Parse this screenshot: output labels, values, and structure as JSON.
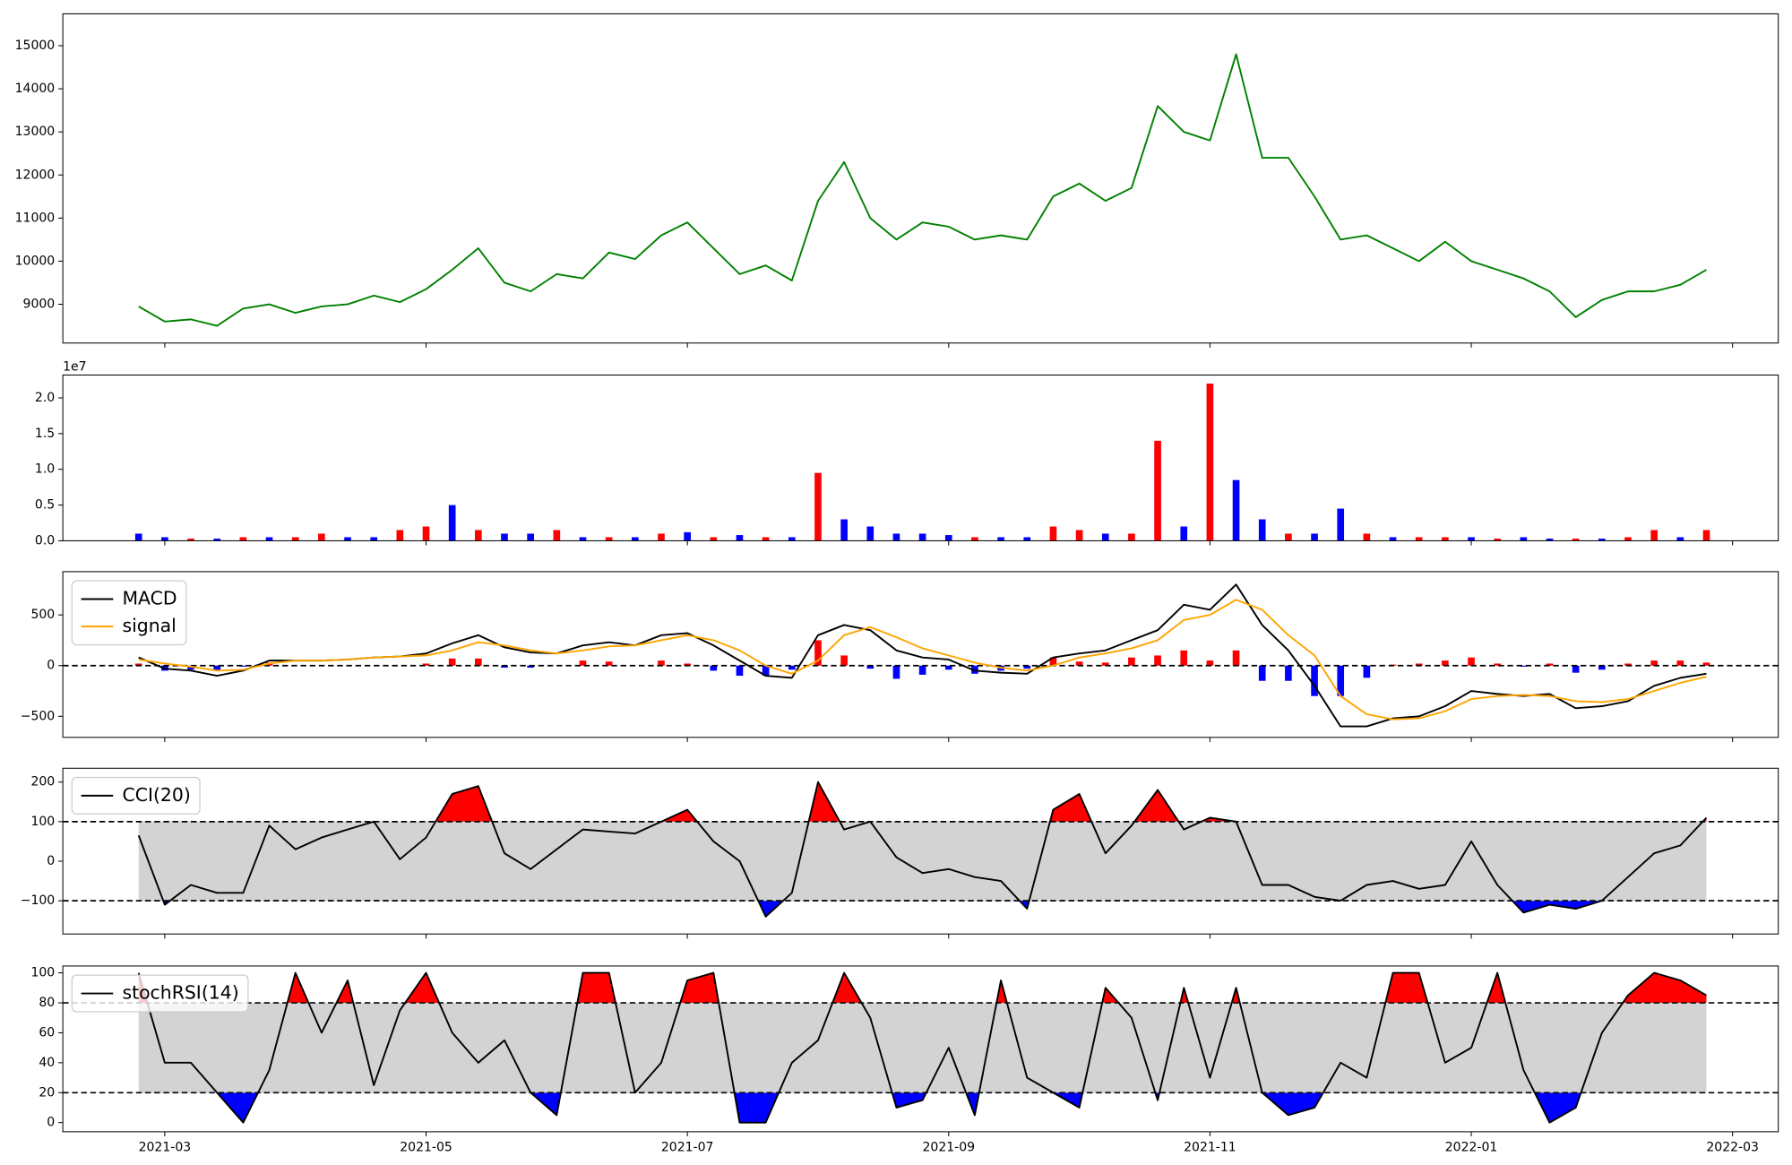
{
  "chart_data": [
    {
      "type": "line",
      "x": [
        2.8,
        3,
        3.2,
        3.4,
        3.6,
        3.8,
        4,
        4.2,
        4.4,
        4.6,
        4.8,
        5,
        5.2,
        5.4,
        5.6,
        5.8,
        6,
        6.2,
        6.4,
        6.6,
        6.8,
        7,
        7.2,
        7.4,
        7.6,
        7.8,
        8,
        8.2,
        8.4,
        8.6,
        8.8,
        9,
        9.2,
        9.4,
        9.6,
        9.8,
        10,
        10.2,
        10.4,
        10.6,
        10.8,
        11,
        11.2,
        11.4,
        11.6,
        11.8,
        12,
        12.2,
        12.4,
        12.6,
        12.8,
        13,
        13.2,
        13.4,
        13.6,
        13.8,
        14,
        14.2,
        14.4,
        14.6,
        14.8
      ],
      "series": [
        {
          "color": "#008000",
          "values": [
            8950,
            8600,
            8650,
            8500,
            8900,
            9000,
            8800,
            8950,
            9000,
            9200,
            9050,
            9350,
            9800,
            10300,
            9500,
            9300,
            9700,
            9600,
            10200,
            10050,
            10600,
            10900,
            10300,
            9700,
            9900,
            9550,
            11400,
            12300,
            11000,
            10500,
            10900,
            10800,
            10500,
            10600,
            10500,
            11500,
            11800,
            11400,
            11700,
            13600,
            13000,
            12800,
            14800,
            12400,
            12400,
            11500,
            10500,
            10600,
            10300,
            10000,
            10450,
            10000,
            9800,
            9600,
            9300,
            8700,
            9100,
            9300,
            9300,
            9450,
            9800
          ]
        }
      ],
      "xlim": [
        2.22,
        15.35
      ],
      "xticks": [
        3,
        5,
        7,
        9,
        11,
        13,
        15
      ],
      "ylim": [
        8100,
        15740
      ],
      "yticks": [
        9000,
        10000,
        11000,
        12000,
        13000,
        14000,
        15000
      ]
    },
    {
      "type": "bar",
      "x": [
        2.8,
        3,
        3.2,
        3.4,
        3.6,
        3.8,
        4,
        4.2,
        4.4,
        4.6,
        4.8,
        5,
        5.2,
        5.4,
        5.6,
        5.8,
        6,
        6.2,
        6.4,
        6.6,
        6.8,
        7,
        7.2,
        7.4,
        7.6,
        7.8,
        8,
        8.2,
        8.4,
        8.6,
        8.8,
        9,
        9.2,
        9.4,
        9.6,
        9.8,
        10,
        10.2,
        10.4,
        10.6,
        10.8,
        11,
        11.2,
        11.4,
        11.6,
        11.8,
        12,
        12.2,
        12.4,
        12.6,
        12.8,
        13,
        13.2,
        13.4,
        13.6,
        13.8,
        14,
        14.2,
        14.4,
        14.6,
        14.8
      ],
      "values": [
        0.1,
        0.05,
        0.03,
        0.03,
        0.05,
        0.05,
        0.05,
        0.1,
        0.05,
        0.05,
        0.15,
        0.2,
        0.5,
        0.15,
        0.1,
        0.1,
        0.15,
        0.05,
        0.05,
        0.05,
        0.1,
        0.12,
        0.05,
        0.08,
        0.05,
        0.05,
        0.95,
        0.3,
        0.2,
        0.1,
        0.1,
        0.08,
        0.05,
        0.05,
        0.05,
        0.2,
        0.15,
        0.1,
        0.1,
        1.4,
        0.2,
        2.2,
        0.85,
        0.3,
        0.1,
        0.1,
        0.45,
        0.1,
        0.05,
        0.05,
        0.05,
        0.05,
        0.03,
        0.05,
        0.03,
        0.03,
        0.03,
        0.05,
        0.15,
        0.05,
        0.15
      ],
      "colors": [
        "#0000ff",
        "#0000ff",
        "#ff0000",
        "#0000ff",
        "#ff0000",
        "#0000ff",
        "#ff0000",
        "#ff0000",
        "#0000ff",
        "#0000ff",
        "#ff0000",
        "#ff0000",
        "#0000ff",
        "#ff0000",
        "#0000ff",
        "#0000ff",
        "#ff0000",
        "#0000ff",
        "#ff0000",
        "#0000ff",
        "#ff0000",
        "#0000ff",
        "#ff0000",
        "#0000ff",
        "#ff0000",
        "#0000ff",
        "#ff0000",
        "#0000ff",
        "#0000ff",
        "#0000ff",
        "#0000ff",
        "#0000ff",
        "#ff0000",
        "#0000ff",
        "#0000ff",
        "#ff0000",
        "#ff0000",
        "#0000ff",
        "#ff0000",
        "#ff0000",
        "#0000ff",
        "#ff0000",
        "#0000ff",
        "#0000ff",
        "#ff0000",
        "#0000ff",
        "#0000ff",
        "#ff0000",
        "#0000ff",
        "#ff0000",
        "#ff0000",
        "#0000ff",
        "#ff0000",
        "#0000ff",
        "#0000ff",
        "#ff0000",
        "#0000ff",
        "#ff0000",
        "#ff0000",
        "#0000ff",
        "#ff0000"
      ],
      "y_offset_label": "1e7",
      "xlim": [
        2.22,
        15.35
      ],
      "xticks": [
        3,
        5,
        7,
        9,
        11,
        13,
        15
      ],
      "ylim": [
        0,
        2.32
      ],
      "yticks": [
        {
          "value": 0,
          "label": "0.0"
        },
        0.5,
        {
          "value": 1,
          "label": "1.0"
        },
        1.5,
        {
          "value": 2,
          "label": "2.0"
        }
      ]
    },
    {
      "type": "macd",
      "x": [
        2.8,
        3,
        3.2,
        3.4,
        3.6,
        3.8,
        4,
        4.2,
        4.4,
        4.6,
        4.8,
        5,
        5.2,
        5.4,
        5.6,
        5.8,
        6,
        6.2,
        6.4,
        6.6,
        6.8,
        7,
        7.2,
        7.4,
        7.6,
        7.8,
        8,
        8.2,
        8.4,
        8.6,
        8.8,
        9,
        9.2,
        9.4,
        9.6,
        9.8,
        10,
        10.2,
        10.4,
        10.6,
        10.8,
        11,
        11.2,
        11.4,
        11.6,
        11.8,
        12,
        12.2,
        12.4,
        12.6,
        12.8,
        13,
        13.2,
        13.4,
        13.6,
        13.8,
        14,
        14.2,
        14.4,
        14.6,
        14.8
      ],
      "series": [
        {
          "name": "MACD",
          "color": "#000000",
          "values": [
            80,
            -30,
            -50,
            -100,
            -50,
            50,
            50,
            50,
            60,
            80,
            90,
            120,
            220,
            300,
            180,
            130,
            120,
            200,
            230,
            200,
            300,
            320,
            200,
            50,
            -100,
            -120,
            300,
            400,
            350,
            150,
            80,
            60,
            -50,
            -70,
            -80,
            80,
            120,
            150,
            250,
            350,
            600,
            550,
            800,
            400,
            150,
            -200,
            -600,
            -600,
            -520,
            -500,
            -400,
            -250,
            -280,
            -300,
            -280,
            -420,
            -400,
            -350,
            -200,
            -120,
            -80
          ]
        },
        {
          "name": "signal",
          "color": "#ffa500",
          "values": [
            60,
            20,
            -10,
            -50,
            -40,
            20,
            50,
            50,
            60,
            80,
            90,
            100,
            150,
            230,
            200,
            150,
            120,
            150,
            190,
            200,
            250,
            300,
            250,
            150,
            0,
            -80,
            50,
            300,
            380,
            280,
            170,
            100,
            30,
            -20,
            -50,
            0,
            80,
            120,
            170,
            250,
            450,
            500,
            650,
            550,
            300,
            100,
            -300,
            -480,
            -530,
            -520,
            -450,
            -330,
            -300,
            -290,
            -300,
            -350,
            -360,
            -330,
            -250,
            -170,
            -110
          ]
        }
      ],
      "histogram": {
        "up_color": "#ff0000",
        "down_color": "#0000ff",
        "values": [
          20,
          -50,
          -40,
          -50,
          -10,
          30,
          0,
          0,
          0,
          0,
          0,
          20,
          70,
          70,
          -20,
          -20,
          0,
          50,
          40,
          0,
          50,
          20,
          -50,
          -100,
          -100,
          -40,
          250,
          100,
          -30,
          -130,
          -90,
          -40,
          -80,
          -50,
          -30,
          80,
          40,
          30,
          80,
          100,
          150,
          50,
          150,
          -150,
          -150,
          -300,
          -300,
          -120,
          10,
          20,
          50,
          80,
          20,
          -10,
          20,
          -70,
          -40,
          20,
          50,
          50,
          30
        ]
      },
      "hlines": [
        0
      ],
      "legend": "upper left",
      "xlim": [
        2.22,
        15.35
      ],
      "xticks": [
        3,
        5,
        7,
        9,
        11,
        13,
        15
      ],
      "ylim": [
        -708,
        927
      ],
      "yticks": [
        {
          "value": -500,
          "label": "−500"
        },
        0,
        500
      ]
    },
    {
      "type": "band_line",
      "x": [
        2.8,
        3,
        3.2,
        3.4,
        3.6,
        3.8,
        4,
        4.2,
        4.4,
        4.6,
        4.8,
        5,
        5.2,
        5.4,
        5.6,
        5.8,
        6,
        6.2,
        6.4,
        6.6,
        6.8,
        7,
        7.2,
        7.4,
        7.6,
        7.8,
        8,
        8.2,
        8.4,
        8.6,
        8.8,
        9,
        9.2,
        9.4,
        9.6,
        9.8,
        10,
        10.2,
        10.4,
        10.6,
        10.8,
        11,
        11.2,
        11.4,
        11.6,
        11.8,
        12,
        12.2,
        12.4,
        12.6,
        12.8,
        13,
        13.2,
        13.4,
        13.6,
        13.8,
        14,
        14.2,
        14.4,
        14.6,
        14.8
      ],
      "series": [
        {
          "name": "CCI(20)",
          "color": "#000000",
          "values": [
            65,
            -110,
            -60,
            -80,
            -80,
            90,
            30,
            60,
            80,
            100,
            5,
            60,
            170,
            190,
            20,
            -20,
            30,
            80,
            75,
            70,
            100,
            130,
            50,
            0,
            -140,
            -80,
            200,
            80,
            100,
            10,
            -30,
            -20,
            -40,
            -50,
            -120,
            130,
            170,
            20,
            90,
            180,
            80,
            110,
            100,
            -60,
            -60,
            -90,
            -100,
            -60,
            -50,
            -70,
            -60,
            50,
            -60,
            -130,
            -110,
            -120,
            -100,
            -40,
            20,
            40,
            110
          ]
        }
      ],
      "hlines": [
        100,
        -100
      ],
      "upper_color": "#ff0000",
      "lower_color": "#0000ff",
      "band_color": "#d3d3d3",
      "legend": "upper left",
      "xlim": [
        2.22,
        15.35
      ],
      "xticks": [
        3,
        5,
        7,
        9,
        11,
        13,
        15
      ],
      "ylim": [
        -184,
        235
      ],
      "yticks": [
        {
          "value": -100,
          "label": "−100"
        },
        0,
        100,
        200
      ]
    },
    {
      "type": "band_line",
      "x": [
        2.8,
        3,
        3.2,
        3.4,
        3.6,
        3.8,
        4,
        4.2,
        4.4,
        4.6,
        4.8,
        5,
        5.2,
        5.4,
        5.6,
        5.8,
        6,
        6.2,
        6.4,
        6.6,
        6.8,
        7,
        7.2,
        7.4,
        7.6,
        7.8,
        8,
        8.2,
        8.4,
        8.6,
        8.8,
        9,
        9.2,
        9.4,
        9.6,
        9.8,
        10,
        10.2,
        10.4,
        10.6,
        10.8,
        11,
        11.2,
        11.4,
        11.6,
        11.8,
        12,
        12.2,
        12.4,
        12.6,
        12.8,
        13,
        13.2,
        13.4,
        13.6,
        13.8,
        14,
        14.2,
        14.4,
        14.6,
        14.8
      ],
      "series": [
        {
          "name": "stochRSI(14)",
          "color": "#000000",
          "values": [
            100,
            40,
            40,
            20,
            0,
            35,
            100,
            60,
            95,
            25,
            75,
            100,
            60,
            40,
            55,
            20,
            5,
            100,
            100,
            20,
            40,
            95,
            100,
            0,
            0,
            40,
            55,
            100,
            70,
            10,
            15,
            50,
            5,
            95,
            30,
            20,
            10,
            90,
            70,
            15,
            90,
            30,
            90,
            20,
            5,
            10,
            40,
            30,
            100,
            100,
            40,
            50,
            100,
            35,
            0,
            10,
            60,
            85,
            100,
            95,
            85
          ]
        }
      ],
      "hlines": [
        80,
        20
      ],
      "upper_color": "#ff0000",
      "lower_color": "#0000ff",
      "band_color": "#d3d3d3",
      "legend": "upper left",
      "xlim": [
        2.22,
        15.35
      ],
      "xticks": [
        {
          "value": 3,
          "label": "2021-03"
        },
        {
          "value": 5,
          "label": "2021-05"
        },
        {
          "value": 7,
          "label": "2021-07"
        },
        {
          "value": 9,
          "label": "2021-09"
        },
        {
          "value": 11,
          "label": "2021-11"
        },
        {
          "value": 13,
          "label": "2022-01"
        },
        {
          "value": 15,
          "label": "2022-03"
        }
      ],
      "ylim": [
        -6.1,
        104.6
      ],
      "yticks": [
        0,
        20,
        40,
        60,
        80,
        100
      ]
    }
  ]
}
